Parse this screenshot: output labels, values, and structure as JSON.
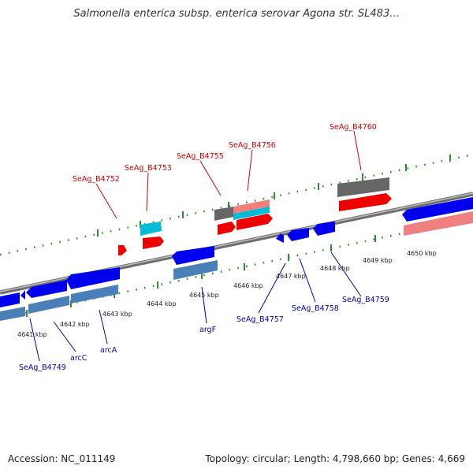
{
  "title": "Salmonella enterica subsp. enterica serovar Agona str. SL483...",
  "footer": {
    "accession": "Accession: NC_011149",
    "summary": "Topology: circular; Length: 4,798,660 bp; Genes: 4,669"
  },
  "colors": {
    "backbone": "#8a8a8a",
    "tick": "#2e8b2e",
    "forward_label": "#cc0000",
    "reverse_label": "#0000aa",
    "cds_forward": "#ff0000",
    "cds_forward_rna": "#f08080",
    "cds_reverse": "#0000ee",
    "cds_reverse_rna": "#4a7fb8",
    "other_forward": "#666666",
    "other_cyan": "#00c8e0"
  },
  "scale_labels": [
    "4641 kbp",
    "4642 kbp",
    "4643 kbp",
    "4644 kbp",
    "4645 kbp",
    "4646 kbp",
    "4647 kbp",
    "4648 kbp",
    "4649 kbp",
    "4650 kbp"
  ],
  "forward_labels": [
    "SeAg_B4752",
    "SeAg_B4753",
    "SeAg_B4755",
    "SeAg_B4756",
    "SeAg_B4760"
  ],
  "reverse_labels": [
    "SeAg_B4749",
    "arcC",
    "arcA",
    "argF",
    "SeAg_B4757",
    "SeAg_B4758",
    "SeAg_B4759"
  ]
}
